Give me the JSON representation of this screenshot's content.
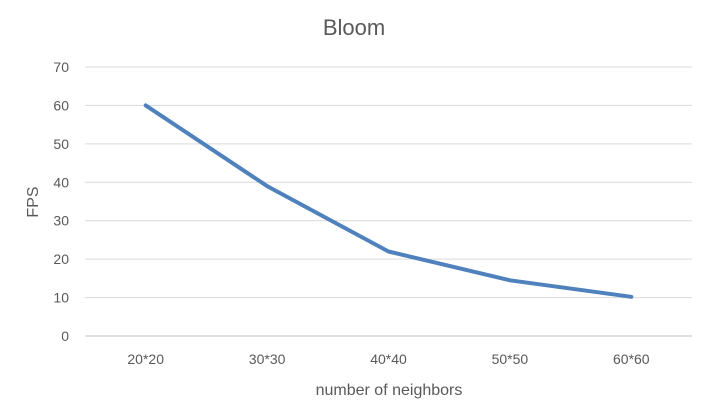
{
  "chart_data": {
    "type": "line",
    "title": "Bloom",
    "xlabel": "number of neighbors",
    "ylabel": "FPS",
    "categories": [
      "20*20",
      "30*30",
      "40*40",
      "50*50",
      "60*60"
    ],
    "series": [
      {
        "values": [
          60,
          39,
          22,
          14.5,
          10.2
        ],
        "color": "#4f81bd"
      }
    ],
    "ylim": [
      0,
      70
    ],
    "yticks": [
      0,
      10,
      20,
      30,
      40,
      50,
      60,
      70
    ],
    "grid": true,
    "legend": "none"
  }
}
